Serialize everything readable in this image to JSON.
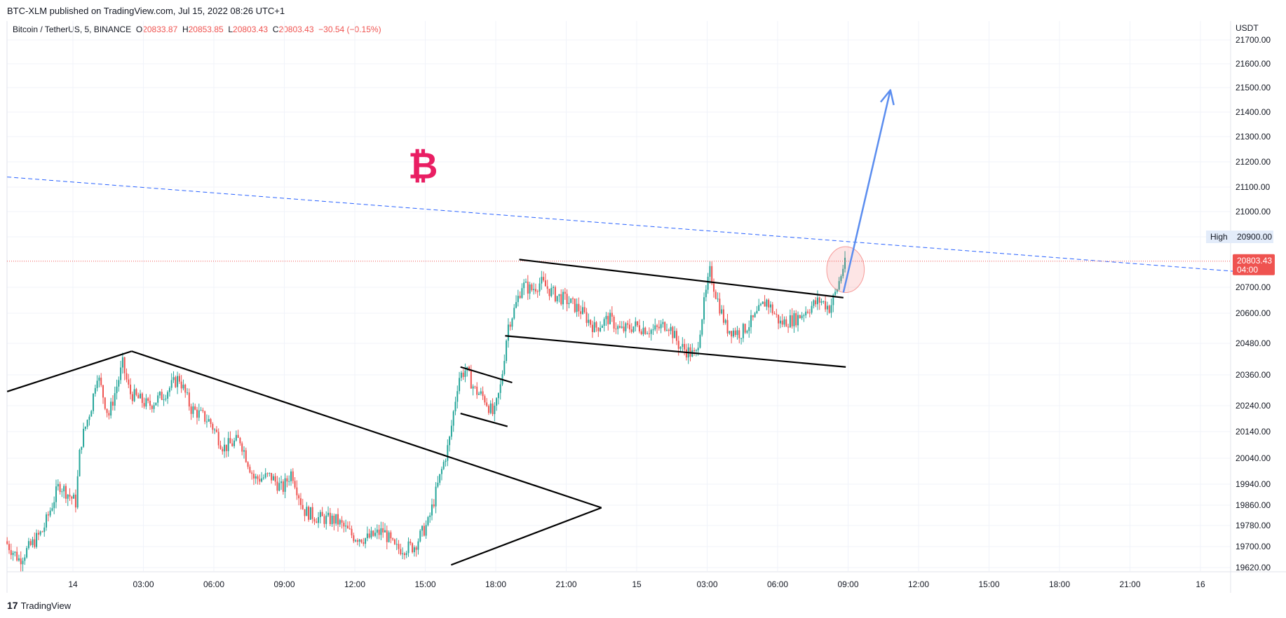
{
  "header": {
    "publish_line": "BTC-XLM published on TradingView.com, Jul 15, 2022 08:26 UTC+1"
  },
  "legend": {
    "symbol": "Bitcoin / TetherUS, 5, BINANCE",
    "o_label": "O",
    "o_value": "20833.87",
    "h_label": "H",
    "h_value": "20853.85",
    "l_label": "L",
    "l_value": "20803.43",
    "c_label": "C",
    "c_value": "20803.43",
    "change": "−30.54 (−0.15%)"
  },
  "footer": {
    "brand": "TradingView",
    "brand_icon": "tradingview-logo-icon"
  },
  "colors": {
    "up": "#26a69a",
    "down": "#ef5350",
    "trendline": "#000000",
    "dashed_line": "#2962ff",
    "arrow": "#5b8def",
    "bitcoin_icon": "#e91e63",
    "last_price_bg": "#ef5350",
    "high_label_bg": "#e3ecfa"
  },
  "chart_data": {
    "type": "candlestick",
    "symbol": "Bitcoin / TetherUS",
    "interval": "5",
    "exchange": "BINANCE",
    "y_axis_unit": "USDT",
    "ylim": [
      19620,
      21700
    ],
    "y_ticks": [
      "21700.00",
      "21600.00",
      "21500.00",
      "21400.00",
      "21300.00",
      "21200.00",
      "21100.00",
      "21000.00",
      "20900.00",
      "20700.00",
      "20600.00",
      "20480.00",
      "20360.00",
      "20240.00",
      "20140.00",
      "20040.00",
      "19940.00",
      "19860.00",
      "19780.00",
      "19700.00",
      "19620.00"
    ],
    "y_tick_values": [
      21700,
      21600,
      21500,
      21400,
      21300,
      21200,
      21100,
      21000,
      20900,
      20700,
      20600,
      20480,
      20360,
      20240,
      20140,
      20040,
      19940,
      19860,
      19780,
      19700,
      19620
    ],
    "x_ticks": [
      "14",
      "03:00",
      "06:00",
      "09:00",
      "12:00",
      "15:00",
      "18:00",
      "21:00",
      "15",
      "03:00",
      "06:00",
      "09:00",
      "12:00",
      "15:00",
      "18:00",
      "21:00",
      "16"
    ],
    "x_tick_hours": [
      0,
      3,
      6,
      9,
      12,
      15,
      18,
      21,
      24,
      27,
      30,
      33,
      36,
      39,
      42,
      45,
      48
    ],
    "x_range_hours": [
      -2.8,
      49.9
    ],
    "last_price": {
      "value": "20803.43",
      "countdown": "04:00"
    },
    "high_marker": {
      "label": "High",
      "value": "20900.00"
    },
    "price_path": [
      [
        -2.8,
        19720
      ],
      [
        -2.2,
        19650
      ],
      [
        -1.2,
        19760
      ],
      [
        -0.5,
        19940
      ],
      [
        0.2,
        19870
      ],
      [
        0.4,
        20090
      ],
      [
        0.9,
        20250
      ],
      [
        1.1,
        20370
      ],
      [
        1.6,
        20200
      ],
      [
        2.2,
        20400
      ],
      [
        2.5,
        20290
      ],
      [
        3.3,
        20240
      ],
      [
        3.9,
        20280
      ],
      [
        4.6,
        20350
      ],
      [
        5.1,
        20230
      ],
      [
        5.9,
        20180
      ],
      [
        6.5,
        20080
      ],
      [
        7.2,
        20110
      ],
      [
        7.8,
        19960
      ],
      [
        8.5,
        19970
      ],
      [
        9.0,
        19920
      ],
      [
        9.4,
        19990
      ],
      [
        9.9,
        19840
      ],
      [
        10.5,
        19810
      ],
      [
        11.3,
        19800
      ],
      [
        12.0,
        19740
      ],
      [
        12.6,
        19730
      ],
      [
        13.3,
        19760
      ],
      [
        13.8,
        19690
      ],
      [
        14.6,
        19700
      ],
      [
        15.2,
        19790
      ],
      [
        15.8,
        20000
      ],
      [
        16.1,
        20100
      ],
      [
        16.5,
        20350
      ],
      [
        16.8,
        20380
      ],
      [
        17.2,
        20300
      ],
      [
        17.6,
        20270
      ],
      [
        18.0,
        20200
      ],
      [
        18.3,
        20320
      ],
      [
        18.6,
        20550
      ],
      [
        18.9,
        20620
      ],
      [
        19.2,
        20710
      ],
      [
        19.6,
        20690
      ],
      [
        20.0,
        20720
      ],
      [
        20.6,
        20670
      ],
      [
        21.1,
        20650
      ],
      [
        21.7,
        20610
      ],
      [
        22.3,
        20540
      ],
      [
        22.9,
        20580
      ],
      [
        23.4,
        20530
      ],
      [
        24.0,
        20550
      ],
      [
        24.8,
        20530
      ],
      [
        25.4,
        20560
      ],
      [
        25.9,
        20470
      ],
      [
        26.6,
        20430
      ],
      [
        26.9,
        20610
      ],
      [
        27.2,
        20760
      ],
      [
        27.5,
        20660
      ],
      [
        27.9,
        20540
      ],
      [
        28.5,
        20520
      ],
      [
        29.1,
        20580
      ],
      [
        29.6,
        20650
      ],
      [
        30.2,
        20560
      ],
      [
        30.9,
        20580
      ],
      [
        31.4,
        20620
      ],
      [
        31.9,
        20650
      ],
      [
        32.3,
        20620
      ],
      [
        32.6,
        20690
      ],
      [
        32.9,
        20790
      ]
    ],
    "annotations": {
      "trendlines": [
        [
          [
            -2.8,
            20295
          ],
          [
            2.5,
            20450
          ]
        ],
        [
          [
            2.5,
            20450
          ],
          [
            22.5,
            19850
          ]
        ],
        [
          [
            16.1,
            19630
          ],
          [
            22.5,
            19850
          ]
        ],
        [
          [
            16.5,
            20390
          ],
          [
            18.7,
            20330
          ]
        ],
        [
          [
            16.5,
            20210
          ],
          [
            18.5,
            20160
          ]
        ],
        [
          [
            18.4,
            20510
          ],
          [
            32.9,
            20390
          ]
        ],
        [
          [
            19.0,
            20810
          ],
          [
            32.8,
            20660
          ]
        ]
      ],
      "dashed_resistance": [
        [
          -2.8,
          21140
        ],
        [
          49.9,
          20760
        ]
      ],
      "projection_arrow": {
        "from": [
          32.8,
          20680
        ],
        "to": [
          34.8,
          21490
        ]
      },
      "highlight_ellipse": {
        "center": [
          32.8,
          20770
        ],
        "rx_hours": 0.8,
        "ry_price": 160
      },
      "icon": {
        "name": "bitcoin-icon",
        "glyph": "₿",
        "at": [
          14.9,
          21190
        ]
      }
    }
  }
}
